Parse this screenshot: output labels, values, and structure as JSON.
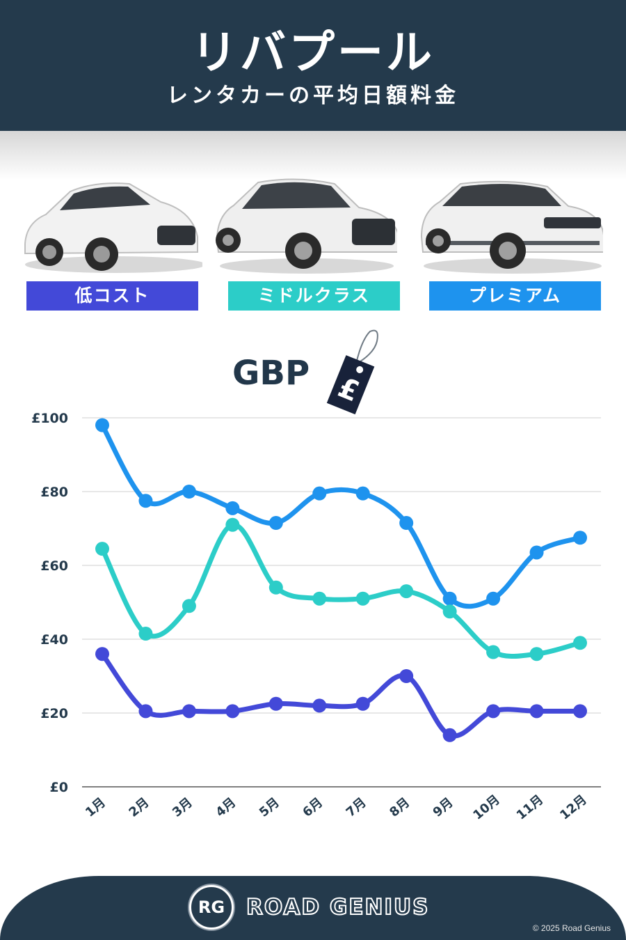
{
  "header": {
    "title": "リバプール",
    "subtitle": "レンタカーの平均日額料金"
  },
  "categories": [
    {
      "label": "低コスト",
      "color": "#4349d8"
    },
    {
      "label": "ミドルクラス",
      "color": "#2ccdc8"
    },
    {
      "label": "プレミアム",
      "color": "#1e93ee"
    }
  ],
  "currency": {
    "label": "GBP",
    "tag_symbol": "£"
  },
  "chart_data": {
    "type": "line",
    "categories": [
      "1月",
      "2月",
      "3月",
      "4月",
      "5月",
      "6月",
      "7月",
      "8月",
      "9月",
      "10月",
      "11月",
      "12月"
    ],
    "y_tick_labels": [
      "£0",
      "£20",
      "£40",
      "£60",
      "£80",
      "£100"
    ],
    "ylim": [
      0,
      100
    ],
    "grid": true,
    "series": [
      {
        "name": "プレミアム",
        "color": "#1e93ee",
        "values": [
          98,
          77.5,
          80,
          75.5,
          71.5,
          79.5,
          79.5,
          71.5,
          51,
          51,
          63.5,
          67.5
        ]
      },
      {
        "name": "ミドルクラス",
        "color": "#2ccdc8",
        "values": [
          64.5,
          41.5,
          49,
          71,
          54,
          51,
          51,
          53,
          47.5,
          36.5,
          36,
          39
        ]
      },
      {
        "name": "低コスト",
        "color": "#4349d8",
        "values": [
          36,
          20.5,
          20.5,
          20.5,
          22.5,
          22,
          22.5,
          30,
          14,
          20.5,
          20.5,
          20.5
        ]
      }
    ]
  },
  "footer": {
    "brand_initials": "RG",
    "brand_name": "ROAD GENIUS",
    "copyright": "© 2025 Road Genius"
  }
}
